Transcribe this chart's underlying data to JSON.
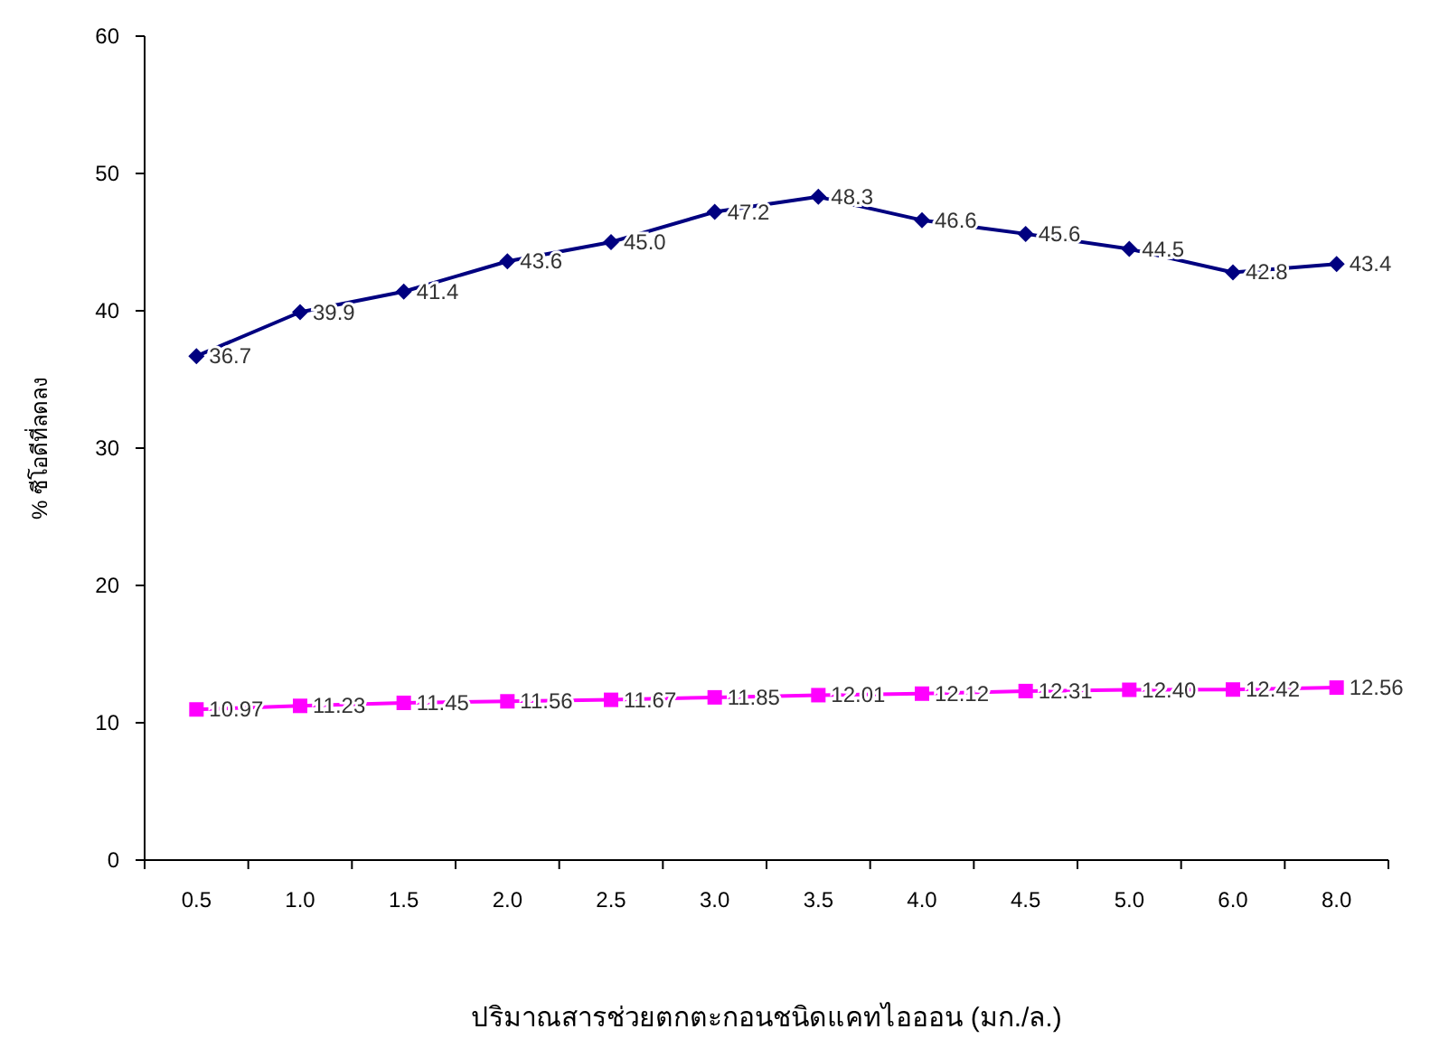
{
  "chart_data": {
    "type": "line",
    "xlabel": "ปริมาณสารช่วยตกตะกอนชนิดแคทไอออน (มก./ล.)",
    "ylabel": "% ซีโอดีที่ลดลง",
    "categories": [
      "0.5",
      "1.0",
      "1.5",
      "2.0",
      "2.5",
      "3.0",
      "3.5",
      "4.0",
      "4.5",
      "5.0",
      "6.0",
      "8.0"
    ],
    "ylim": [
      0,
      60
    ],
    "yticks": [
      0,
      10,
      20,
      30,
      40,
      50,
      60
    ],
    "grid": false,
    "series": [
      {
        "color": "#000080",
        "marker": "diamond",
        "values": [
          36.7,
          39.9,
          41.4,
          43.6,
          45.0,
          47.2,
          48.3,
          46.6,
          45.6,
          44.5,
          42.8,
          43.4
        ],
        "value_labels": [
          "36.7",
          "39.9",
          "41.4",
          "43.6",
          "45.0",
          "47.2",
          "48.3",
          "46.6",
          "45.6",
          "44.5",
          "42.8",
          "43.4"
        ]
      },
      {
        "color": "#ff00ff",
        "marker": "square",
        "values": [
          10.97,
          11.23,
          11.45,
          11.56,
          11.67,
          11.85,
          12.01,
          12.12,
          12.31,
          12.4,
          12.42,
          12.56
        ],
        "value_labels": [
          "10.97",
          "11.23",
          "11.45",
          "11.56",
          "11.67",
          "11.85",
          "12.01",
          "12.12",
          "12.31",
          "12.40",
          "12.42",
          "12.56"
        ]
      }
    ]
  }
}
